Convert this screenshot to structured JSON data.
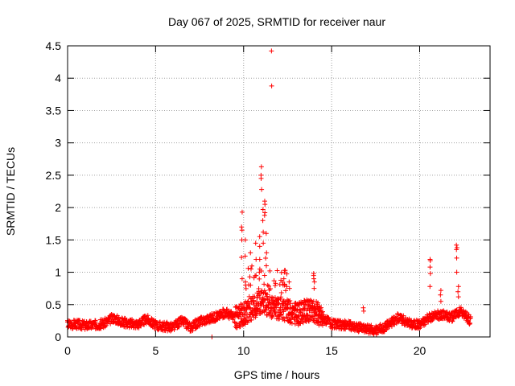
{
  "chart_data": {
    "type": "scatter",
    "title": "Day 067 of 2025, SRMTID for receiver naur",
    "xlabel": "GPS time / hours",
    "ylabel": "SRMTID / TECUs",
    "xlim": [
      0,
      24
    ],
    "ylim": [
      0,
      4.5
    ],
    "xticks": [
      0,
      5,
      10,
      15,
      20
    ],
    "xtick_labels": [
      "0",
      "5",
      "10",
      "15",
      "20"
    ],
    "yticks": [
      0,
      0.5,
      1,
      1.5,
      2,
      2.5,
      3,
      3.5,
      4,
      4.5
    ],
    "ytick_labels": [
      "0",
      "0.5",
      "1",
      "1.5",
      "2",
      "2.5",
      "3",
      "3.5",
      "4",
      "4.5"
    ],
    "grid": true,
    "marker": "+",
    "color": "#ff0000",
    "x_end": 22.9,
    "baseline_profile": [
      [
        0,
        0.2
      ],
      [
        0.5,
        0.2
      ],
      [
        1,
        0.18
      ],
      [
        2,
        0.2
      ],
      [
        2.6,
        0.3
      ],
      [
        3.2,
        0.22
      ],
      [
        4,
        0.2
      ],
      [
        4.5,
        0.28
      ],
      [
        5,
        0.18
      ],
      [
        6,
        0.15
      ],
      [
        6.5,
        0.25
      ],
      [
        7,
        0.15
      ],
      [
        7.6,
        0.25
      ],
      [
        8.3,
        0.3
      ],
      [
        9,
        0.38
      ],
      [
        9.5,
        0.3
      ],
      [
        10,
        0.35
      ],
      [
        10.5,
        0.45
      ],
      [
        11,
        0.55
      ],
      [
        11.5,
        0.45
      ],
      [
        12,
        0.45
      ],
      [
        12.5,
        0.4
      ],
      [
        13,
        0.35
      ],
      [
        13.5,
        0.4
      ],
      [
        14,
        0.4
      ],
      [
        14.5,
        0.3
      ],
      [
        15,
        0.2
      ],
      [
        16,
        0.18
      ],
      [
        17,
        0.12
      ],
      [
        17.5,
        0.1
      ],
      [
        18,
        0.15
      ],
      [
        18.8,
        0.3
      ],
      [
        19.5,
        0.2
      ],
      [
        20,
        0.2
      ],
      [
        20.6,
        0.3
      ],
      [
        21.2,
        0.35
      ],
      [
        21.8,
        0.3
      ],
      [
        22.3,
        0.4
      ],
      [
        22.9,
        0.25
      ]
    ],
    "spikes": [
      {
        "x": 9.9,
        "values": [
          1.93,
          1.7,
          1.65,
          1.5,
          1.23,
          0.9
        ]
      },
      {
        "x": 10.1,
        "values": [
          1.5,
          1.25,
          0.85
        ]
      },
      {
        "x": 10.4,
        "values": [
          1.3,
          1.05,
          0.8
        ]
      },
      {
        "x": 10.7,
        "values": [
          1.45,
          1.2,
          0.95
        ]
      },
      {
        "x": 10.9,
        "values": [
          1.55,
          1.4,
          1.2,
          1.0
        ]
      },
      {
        "x": 11.0,
        "values": [
          2.63,
          2.5,
          2.45,
          2.28
        ]
      },
      {
        "x": 11.1,
        "values": [
          1.97,
          1.8,
          1.62,
          1.45
        ]
      },
      {
        "x": 11.2,
        "values": [
          2.1,
          2.05,
          1.92,
          1.88
        ]
      },
      {
        "x": 11.3,
        "values": [
          1.6,
          1.3,
          1.1
        ]
      },
      {
        "x": 11.58,
        "values": [
          4.42,
          3.88
        ]
      },
      {
        "x": 12.3,
        "values": [
          1.0,
          0.9,
          0.8
        ]
      },
      {
        "x": 12.6,
        "values": [
          0.85,
          0.75
        ]
      },
      {
        "x": 14.0,
        "values": [
          0.98,
          0.95,
          0.9,
          0.85,
          0.75
        ]
      },
      {
        "x": 16.8,
        "values": [
          0.45,
          0.4
        ]
      },
      {
        "x": 20.6,
        "values": [
          1.2,
          1.18,
          1.08,
          0.98,
          0.78
        ]
      },
      {
        "x": 21.2,
        "values": [
          0.72,
          0.65,
          0.55
        ]
      },
      {
        "x": 22.1,
        "values": [
          1.42,
          1.38,
          1.35,
          1.22,
          1.0
        ]
      },
      {
        "x": 22.2,
        "values": [
          0.78,
          0.7,
          0.62
        ]
      }
    ],
    "outliers": [
      {
        "x": 8.2,
        "y": 0.0
      }
    ]
  }
}
